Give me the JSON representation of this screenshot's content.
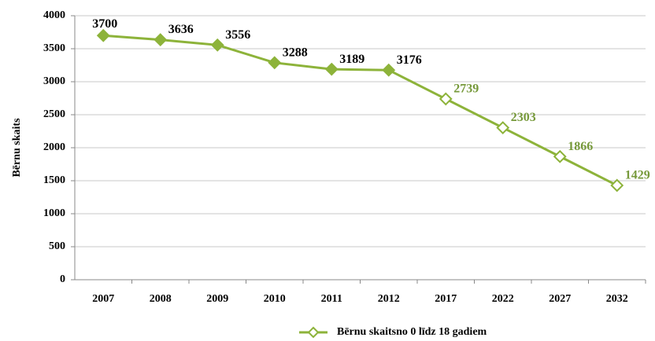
{
  "chart_data": {
    "type": "line",
    "y_label": "Bērnu skaits",
    "categories": [
      "2007",
      "2008",
      "2009",
      "2010",
      "2011",
      "2012",
      "2017",
      "2022",
      "2027",
      "2032"
    ],
    "series": [
      {
        "name": "Bērnu skaitsno 0 līdz 18 gadiem",
        "color": "#8db33a",
        "values": [
          3700,
          3636,
          3556,
          3288,
          3189,
          3176,
          2739,
          2303,
          1866,
          1429
        ],
        "marker_fills": [
          "#8db33a",
          "#8db33a",
          "#8db33a",
          "#8db33a",
          "#8db33a",
          "#8db33a",
          "#ffffff",
          "#ffffff",
          "#ffffff",
          "#ffffff"
        ],
        "label_colors": [
          "#000000",
          "#000000",
          "#000000",
          "#000000",
          "#000000",
          "#000000",
          "#76993a",
          "#76993a",
          "#76993a",
          "#76993a"
        ]
      }
    ],
    "ylim": [
      0,
      4000
    ],
    "yticks": [
      0,
      500,
      1000,
      1500,
      2000,
      2500,
      3000,
      3500,
      4000
    ],
    "grid": true,
    "legend": "bottom"
  }
}
